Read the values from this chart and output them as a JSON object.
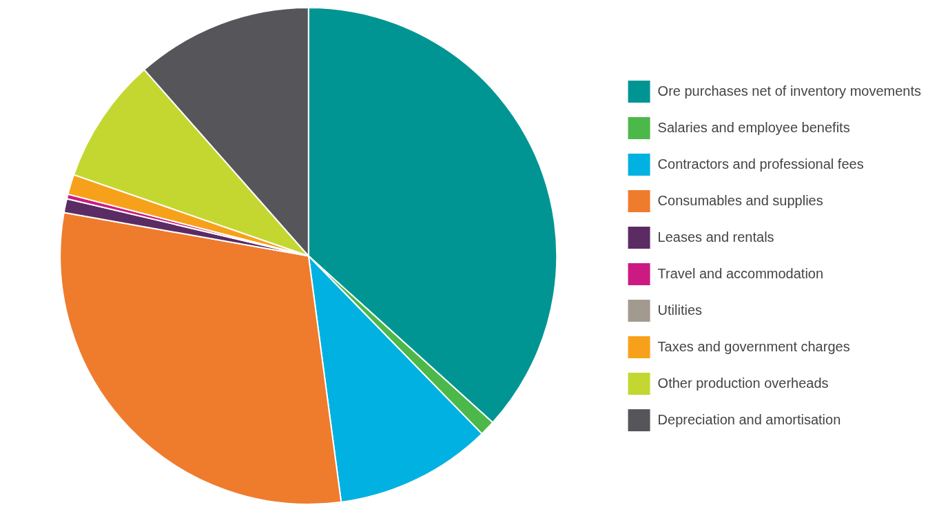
{
  "chart_data": {
    "type": "pie",
    "categories": [
      "Ore purchases net of inventory movements",
      "Salaries and employee benefits",
      "Contractors and professional fees",
      "Consumables and supplies",
      "Leases and rentals",
      "Travel and accommodation",
      "Utilities",
      "Taxes and government charges",
      "Other production overheads",
      "Depreciation and amortisation"
    ],
    "values": [
      36.7,
      1.0,
      10.2,
      29.9,
      0.9,
      0.3,
      null,
      1.3,
      8.2,
      11.5
    ],
    "colors": [
      "#009593",
      "#4cb849",
      "#00b1e1",
      "#ef7b2d",
      "#5b2c63",
      "#cc1a82",
      "#a39a8f",
      "#f7a11b",
      "#c4d731",
      "#56555a"
    ],
    "legend": "right"
  }
}
